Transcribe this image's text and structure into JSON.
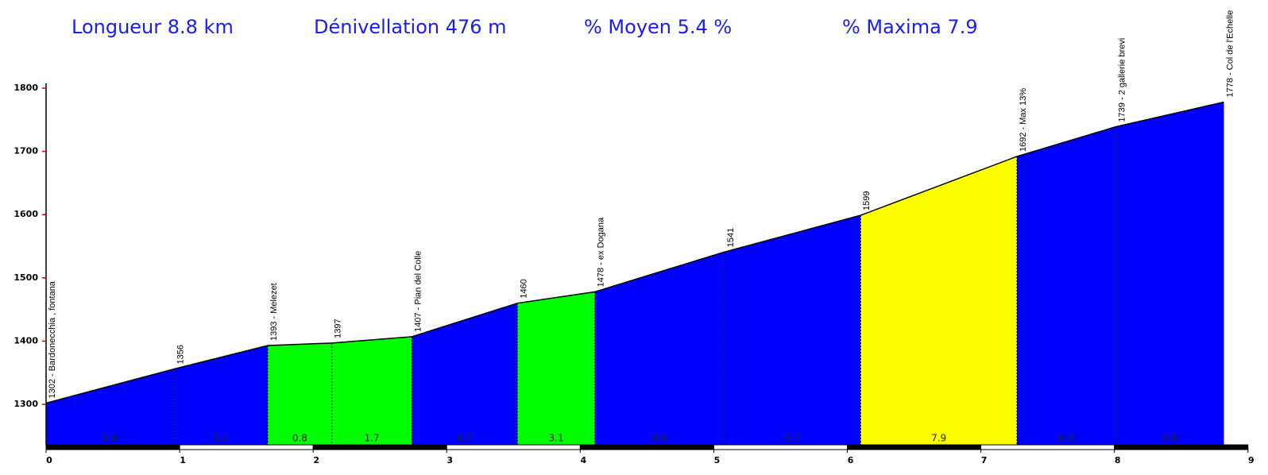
{
  "chart_data": {
    "type": "area",
    "stats": [
      "Longueur  8.8 km",
      "Dénivellation 476 m",
      "% Moyen  5.4 %",
      "% Maxima 7.9"
    ],
    "x": [
      0,
      0.96,
      1.66,
      2.14,
      2.74,
      3.53,
      4.11,
      5.08,
      6.1,
      7.27,
      8.01,
      8.82
    ],
    "values": [
      1302,
      1356,
      1393,
      1397,
      1407,
      1460,
      1478,
      1541,
      1599,
      1692,
      1739,
      1778
    ],
    "point_labels": [
      "1302 - Bardonecchia , fontana",
      "1356",
      "1393 - Melezet",
      "1397",
      "1407 - Pian del Colle",
      "1460",
      "1478 - ex Dogana",
      "1541",
      "1599",
      "1692 - Max 13%",
      "1739 - 2 gallerie brevi",
      "1778 - Col de l'Echelle"
    ],
    "segments": {
      "gradients": [
        5.6,
        5.2,
        0.8,
        1.7,
        6.7,
        3.1,
        6.6,
        5.7,
        7.9,
        6.3,
        4.8
      ],
      "colors": [
        "#0000ff",
        "#0000ff",
        "#00ff00",
        "#00ff00",
        "#0000ff",
        "#00ff00",
        "#0000ff",
        "#0000ff",
        "#ffff00",
        "#0000ff",
        "#0000ff"
      ]
    },
    "xlim": [
      0,
      9.15
    ],
    "xticks": [
      0,
      1,
      2,
      3,
      4,
      5,
      6,
      7,
      8,
      9
    ],
    "ylim": [
      1236,
      1800
    ],
    "yticks": [
      1300,
      1400,
      1500,
      1600,
      1700,
      1800
    ]
  }
}
